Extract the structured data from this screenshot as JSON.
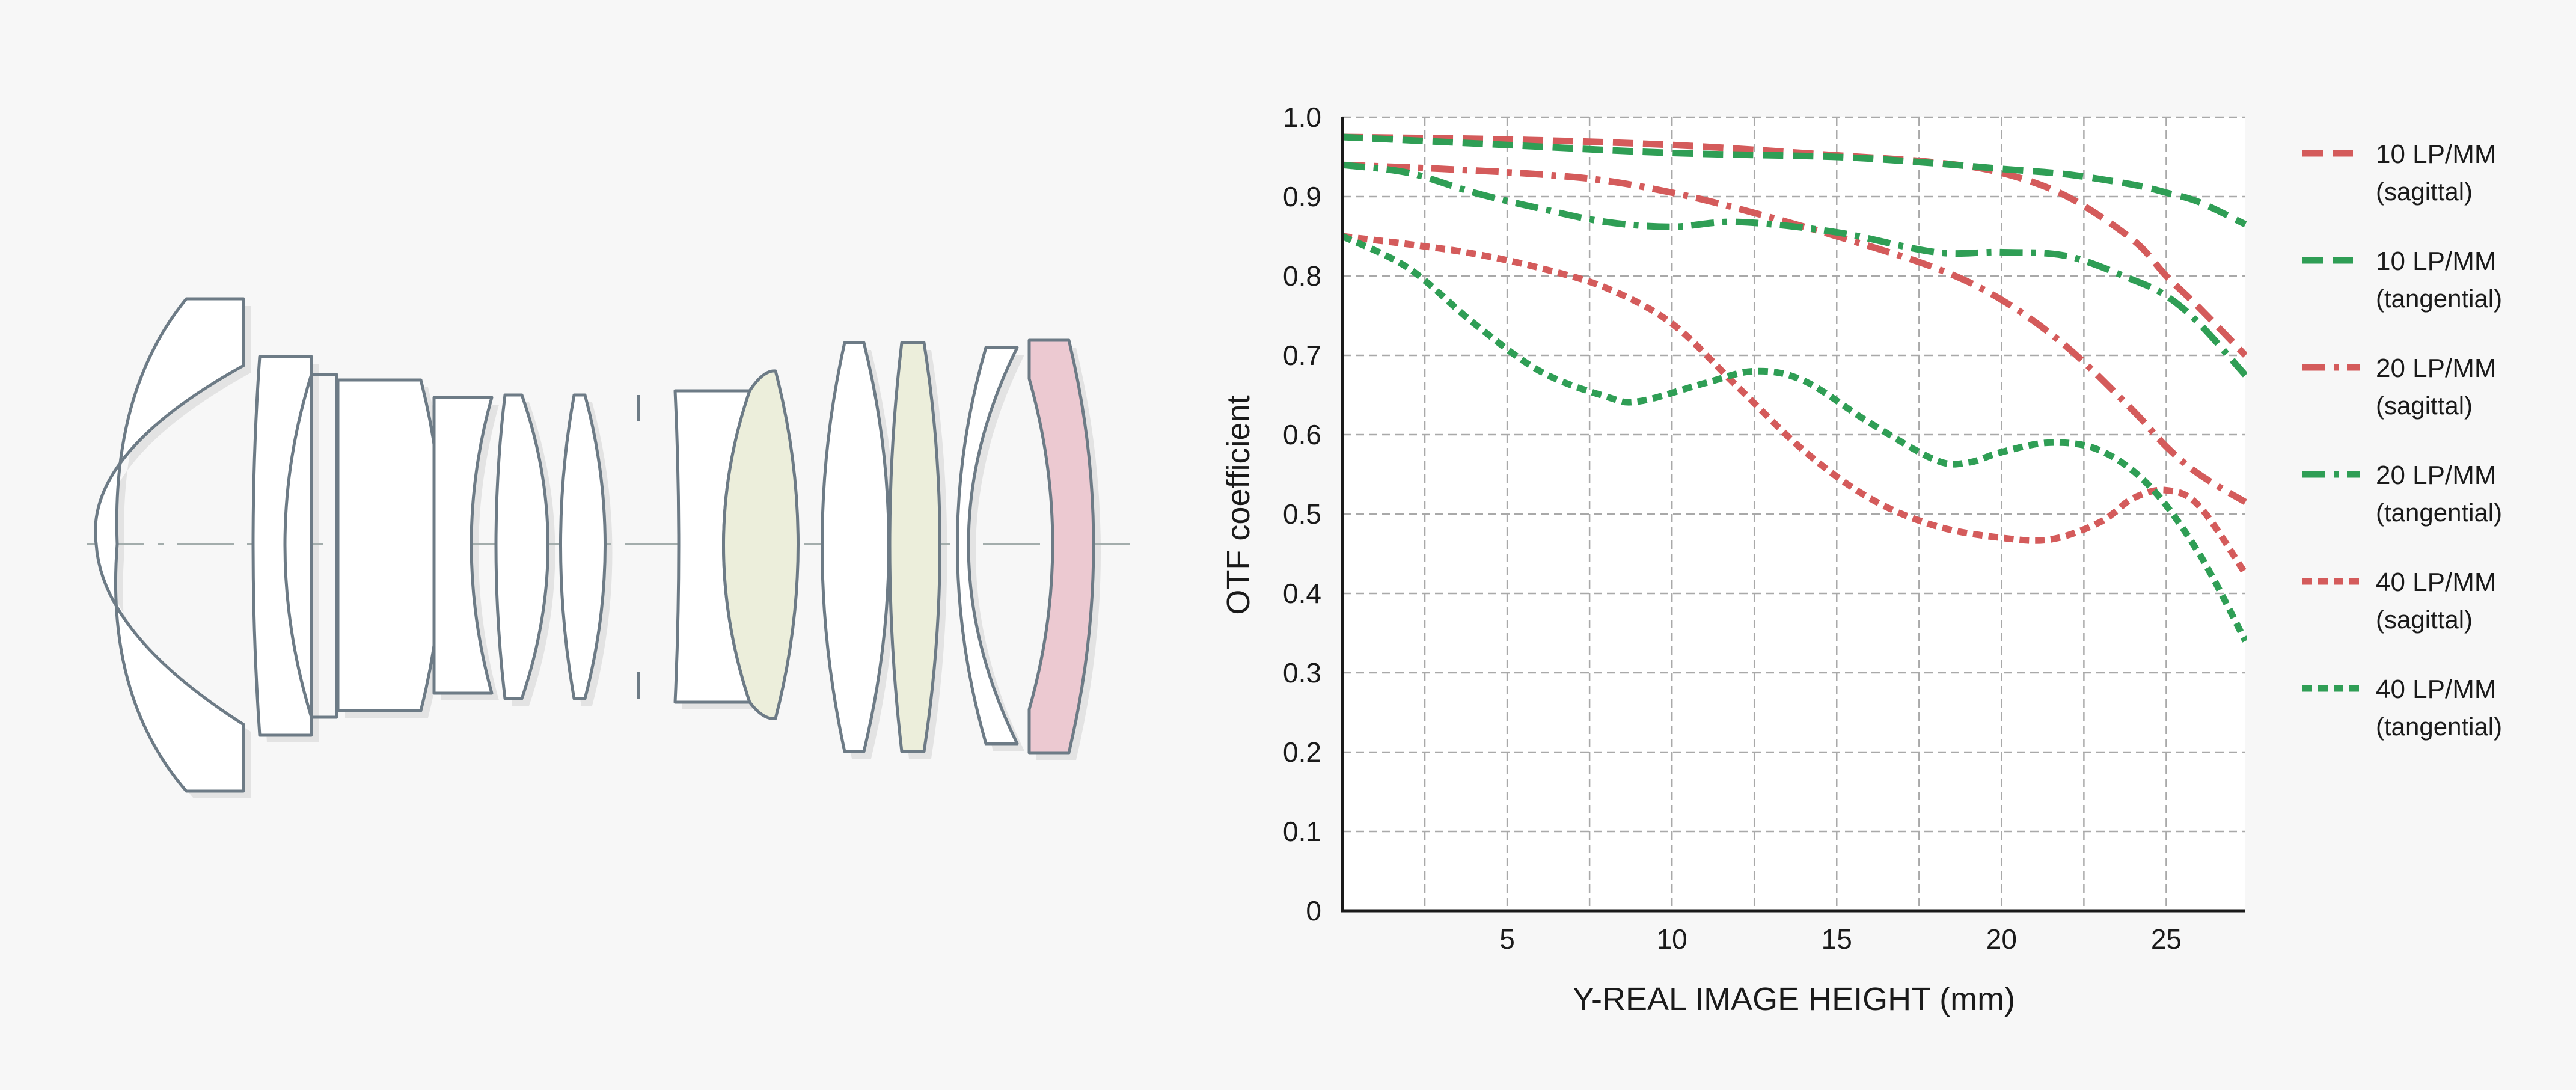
{
  "colors": {
    "background": "#f7f7f7",
    "plot_background": "#ffffff",
    "grid": "#a9a9a9",
    "axis": "#1a1a1a",
    "sagittal": "#d45b5b",
    "tangential": "#2f9e55",
    "lens_stroke": "#6d7b86",
    "lens_fill": "#ffffff",
    "lens_yellow": "#eceedb",
    "lens_pink": "#ecc9d1",
    "optical_axis": "#a3adac"
  },
  "diagram": {
    "type": "lens-element-cross-section"
  },
  "chart_data": {
    "type": "line",
    "xlabel": "Y-REAL IMAGE HEIGHT (mm)",
    "ylabel": "OTF coefficient",
    "xlim": [
      0,
      27.4
    ],
    "ylim": [
      0,
      1.0
    ],
    "xticks": [
      5,
      10,
      15,
      20,
      25
    ],
    "yticks": [
      0,
      0.1,
      0.2,
      0.3,
      0.4,
      0.5,
      0.6,
      0.7,
      0.8,
      0.9,
      1.0
    ],
    "ytick_labels": [
      "0",
      "0.1",
      "0.2",
      "0.3",
      "0.4",
      "0.5",
      "0.6",
      "0.7",
      "0.8",
      "0.9",
      "1.0"
    ],
    "grid": true,
    "legend_position": "right",
    "series": [
      {
        "name": "10 LP/MM",
        "sub": "(sagittal)",
        "color": "#d45b5b",
        "dash": "dashed",
        "x": [
          0,
          5,
          10,
          15,
          18,
          20,
          22,
          24,
          25,
          26,
          27.4
        ],
        "y": [
          0.975,
          0.972,
          0.965,
          0.952,
          0.943,
          0.93,
          0.9,
          0.845,
          0.8,
          0.76,
          0.7
        ]
      },
      {
        "name": "10 LP/MM",
        "sub": "(tangential)",
        "color": "#2f9e55",
        "dash": "dashed",
        "x": [
          0,
          5,
          10,
          15,
          18,
          20,
          22,
          24,
          25,
          26,
          27.4
        ],
        "y": [
          0.975,
          0.965,
          0.955,
          0.95,
          0.942,
          0.935,
          0.928,
          0.915,
          0.905,
          0.893,
          0.865
        ]
      },
      {
        "name": "20 LP/MM",
        "sub": "(sagittal)",
        "color": "#d45b5b",
        "dash": "dashdot",
        "x": [
          0,
          3,
          6,
          8,
          10,
          12,
          15,
          18,
          20,
          22,
          24,
          25,
          26,
          27.4
        ],
        "y": [
          0.94,
          0.935,
          0.928,
          0.92,
          0.905,
          0.885,
          0.85,
          0.81,
          0.77,
          0.71,
          0.63,
          0.585,
          0.55,
          0.515
        ]
      },
      {
        "name": "20 LP/MM",
        "sub": "(tangential)",
        "color": "#2f9e55",
        "dash": "dashdot",
        "x": [
          0,
          2,
          4,
          6,
          8,
          10,
          12,
          15,
          18,
          20,
          22,
          24,
          25,
          26,
          27.4
        ],
        "y": [
          0.94,
          0.93,
          0.905,
          0.885,
          0.868,
          0.862,
          0.868,
          0.855,
          0.83,
          0.83,
          0.825,
          0.795,
          0.775,
          0.74,
          0.675
        ]
      },
      {
        "name": "40 LP/MM",
        "sub": "(sagittal)",
        "color": "#d45b5b",
        "dash": "dotted",
        "x": [
          0,
          2,
          4,
          6,
          8,
          10,
          12,
          14,
          16,
          18,
          20,
          21.5,
          23,
          24,
          25,
          26,
          27.4
        ],
        "y": [
          0.85,
          0.84,
          0.828,
          0.81,
          0.785,
          0.74,
          0.66,
          0.58,
          0.52,
          0.485,
          0.47,
          0.468,
          0.49,
          0.52,
          0.53,
          0.51,
          0.425
        ]
      },
      {
        "name": "40 LP/MM",
        "sub": "(tangential)",
        "color": "#2f9e55",
        "dash": "dotted",
        "x": [
          0,
          2,
          4,
          6,
          8,
          9,
          11,
          12.5,
          14,
          16,
          18,
          19,
          20,
          21.5,
          23,
          24.5,
          26,
          27.4
        ],
        "y": [
          0.85,
          0.81,
          0.74,
          0.68,
          0.648,
          0.642,
          0.665,
          0.68,
          0.668,
          0.615,
          0.568,
          0.565,
          0.578,
          0.59,
          0.58,
          0.535,
          0.45,
          0.34
        ]
      }
    ]
  }
}
